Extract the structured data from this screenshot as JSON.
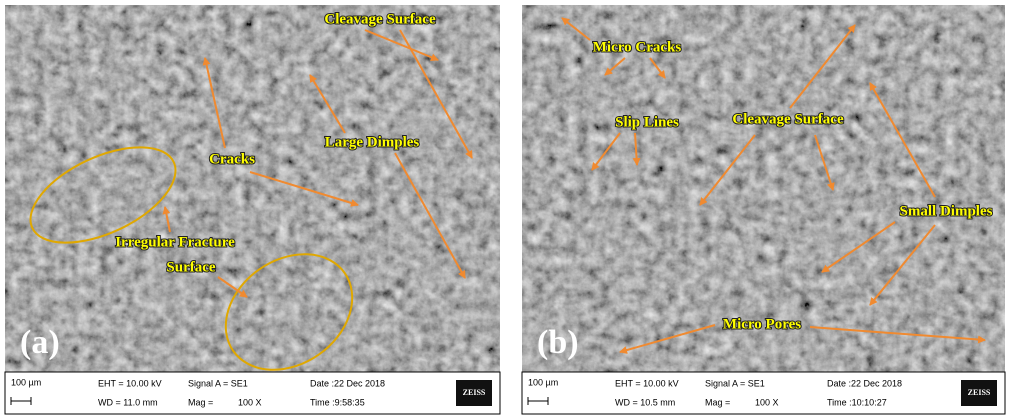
{
  "panels": [
    {
      "label": "(a)",
      "annotations": [
        "Cleavage Surface",
        "Cracks",
        "Large Dimples",
        "Irregular Fracture",
        "Surface"
      ],
      "info": {
        "scale": "100 µm",
        "eht": "EHT = 10.00 kV",
        "wd": "WD = 11.0 mm",
        "signal": "Signal A = SE1",
        "mag_label": "Mag =",
        "mag": "100 X",
        "date": "Date :22 Dec 2018",
        "time": "Time :9:58:35",
        "logo": "ZEISS"
      }
    },
    {
      "label": "(b)",
      "annotations": [
        "Micro Cracks",
        "Slip Lines",
        "Cleavage Surface",
        "Small Dimples",
        "Micro Pores"
      ],
      "info": {
        "scale": "100 µm",
        "eht": "EHT = 10.00 kV",
        "wd": "WD = 10.5 mm",
        "signal": "Signal A = SE1",
        "mag_label": "Mag =",
        "mag": "100 X",
        "date": "Date :22 Dec 2018",
        "time": "Time :10:10:27",
        "logo": "ZEISS"
      }
    }
  ]
}
